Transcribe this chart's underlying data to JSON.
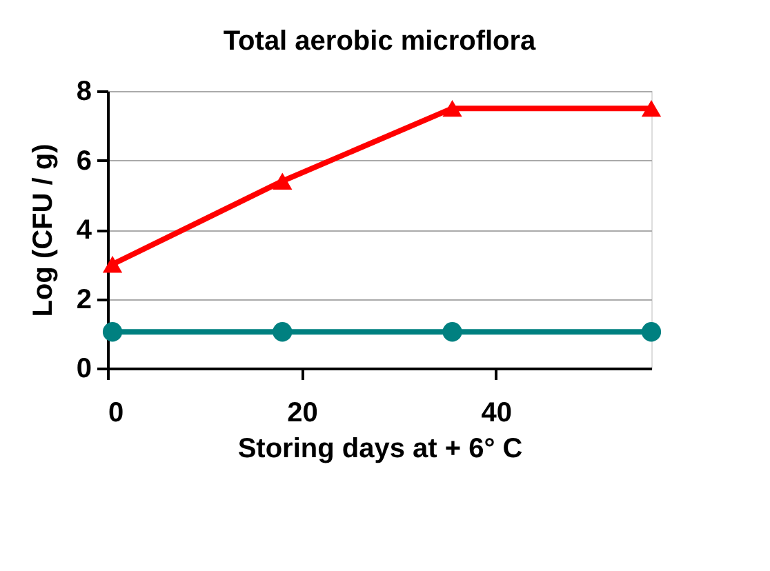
{
  "chart_data": {
    "type": "line",
    "title": "Total aerobic microflora",
    "xlabel": "Storing days at + 6° C",
    "ylabel": "Log (CFU / g)",
    "x": [
      0.5,
      18,
      35.5,
      56
    ],
    "series": [
      {
        "color": "#ff0000",
        "values": [
          3.0,
          5.4,
          7.5,
          7.5
        ],
        "marker": "triangle"
      },
      {
        "color": "#008080",
        "values": [
          1.05,
          1.05,
          1.05,
          1.05
        ],
        "marker": "circle"
      }
    ],
    "xlim": [
      0,
      56
    ],
    "xticks": [
      0,
      20,
      40
    ],
    "ylim": [
      0,
      8
    ],
    "yticks": [
      0,
      2,
      4,
      6,
      8
    ],
    "grid": "y"
  }
}
